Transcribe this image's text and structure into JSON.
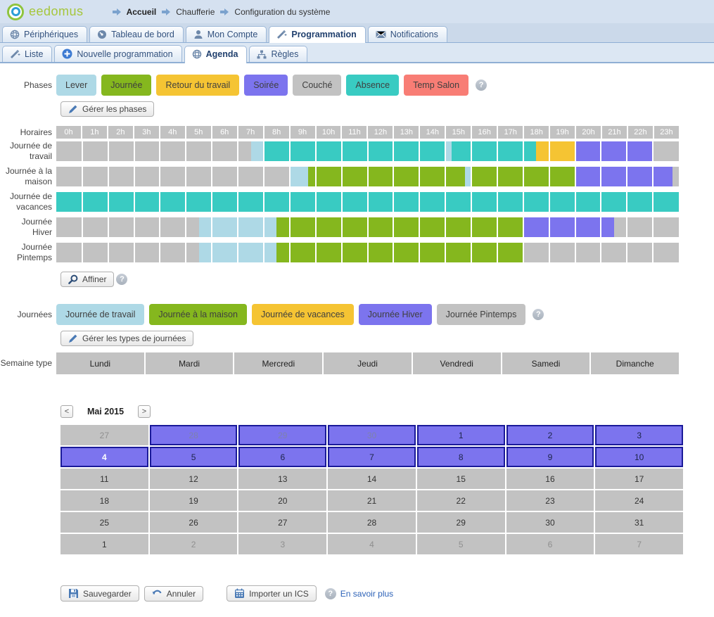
{
  "header": {
    "logo_text": "eedomus",
    "breadcrumb": [
      "Accueil",
      "Chaufferie",
      "Configuration du système"
    ]
  },
  "tabs": {
    "items": [
      {
        "label": "Périphériques",
        "active": false
      },
      {
        "label": "Tableau de bord",
        "active": false
      },
      {
        "label": "Mon Compte",
        "active": false
      },
      {
        "label": "Programmation",
        "active": true
      },
      {
        "label": "Notifications",
        "active": false
      }
    ]
  },
  "subtabs": {
    "items": [
      {
        "label": "Liste",
        "active": false
      },
      {
        "label": "Nouvelle programmation",
        "active": false
      },
      {
        "label": "Agenda",
        "active": true
      },
      {
        "label": "Règles",
        "active": false
      }
    ]
  },
  "phases": {
    "label": "Phases",
    "items": [
      {
        "label": "Lever",
        "color": "#aed9e6"
      },
      {
        "label": "Journée",
        "color": "#85b71e"
      },
      {
        "label": "Retour du travail",
        "color": "#f5c433"
      },
      {
        "label": "Soirée",
        "color": "#7c74ee"
      },
      {
        "label": "Couché",
        "color": "#c2c2c2"
      },
      {
        "label": "Absence",
        "color": "#39cbc2"
      },
      {
        "label": "Temp Salon",
        "color": "#f87d75"
      }
    ],
    "manage_label": "Gérer les phases"
  },
  "timeline": {
    "label": "Horaires",
    "hours": [
      "0h",
      "1h",
      "2h",
      "3h",
      "4h",
      "5h",
      "6h",
      "7h",
      "8h",
      "9h",
      "10h",
      "11h",
      "12h",
      "13h",
      "14h",
      "15h",
      "16h",
      "17h",
      "18h",
      "19h",
      "20h",
      "21h",
      "22h",
      "23h"
    ],
    "colors": {
      "gray": "#c2c2c2",
      "lightblue": "#aed9e6",
      "teal": "#39cbc2",
      "green": "#85b71e",
      "yellow": "#f5c433",
      "purple": "#7c74ee"
    },
    "rows": [
      {
        "label": "Journée de travail",
        "segments": [
          {
            "from": 0,
            "to": 7.5,
            "color": "gray"
          },
          {
            "from": 7.5,
            "to": 8,
            "color": "lightblue"
          },
          {
            "from": 8,
            "to": 15,
            "color": "teal"
          },
          {
            "from": 15,
            "to": 15.25,
            "color": "lightblue"
          },
          {
            "from": 15.25,
            "to": 18.5,
            "color": "teal"
          },
          {
            "from": 18.5,
            "to": 20,
            "color": "yellow"
          },
          {
            "from": 20,
            "to": 23,
            "color": "purple"
          },
          {
            "from": 23,
            "to": 24,
            "color": "gray"
          }
        ]
      },
      {
        "label": "Journée à la maison",
        "segments": [
          {
            "from": 0,
            "to": 9,
            "color": "gray"
          },
          {
            "from": 9,
            "to": 9.7,
            "color": "lightblue"
          },
          {
            "from": 9.7,
            "to": 15.75,
            "color": "green"
          },
          {
            "from": 15.75,
            "to": 16,
            "color": "lightblue"
          },
          {
            "from": 16,
            "to": 20,
            "color": "green"
          },
          {
            "from": 20,
            "to": 23.75,
            "color": "purple"
          },
          {
            "from": 23.75,
            "to": 24,
            "color": "gray"
          }
        ]
      },
      {
        "label": "Journée de vacances",
        "segments": [
          {
            "from": 0,
            "to": 24,
            "color": "teal"
          }
        ]
      },
      {
        "label": "Journée Hiver",
        "segments": [
          {
            "from": 0,
            "to": 5.5,
            "color": "gray"
          },
          {
            "from": 5.5,
            "to": 8.5,
            "color": "lightblue"
          },
          {
            "from": 8.5,
            "to": 18,
            "color": "green"
          },
          {
            "from": 18,
            "to": 21.5,
            "color": "purple"
          },
          {
            "from": 21.5,
            "to": 24,
            "color": "gray"
          }
        ]
      },
      {
        "label": "Journée Pintemps",
        "segments": [
          {
            "from": 0,
            "to": 5.5,
            "color": "gray"
          },
          {
            "from": 5.5,
            "to": 8.5,
            "color": "lightblue"
          },
          {
            "from": 8.5,
            "to": 18,
            "color": "green"
          },
          {
            "from": 18,
            "to": 24,
            "color": "gray"
          }
        ]
      }
    ],
    "refine_label": "Affiner"
  },
  "journees": {
    "label": "Journées",
    "items": [
      {
        "label": "Journée de travail",
        "color": "#aed9e6"
      },
      {
        "label": "Journée à la maison",
        "color": "#85b71e"
      },
      {
        "label": "Journée de vacances",
        "color": "#f5c433"
      },
      {
        "label": "Journée Hiver",
        "color": "#7c74ee"
      },
      {
        "label": "Journée Pintemps",
        "color": "#c2c2c2"
      }
    ],
    "manage_label": "Gérer les types de journées"
  },
  "week": {
    "label": "Semaine type",
    "days": [
      "Lundi",
      "Mardi",
      "Mercredi",
      "Jeudi",
      "Vendredi",
      "Samedi",
      "Dimanche"
    ]
  },
  "calendar": {
    "prev": "<",
    "next": ">",
    "month": "Mai 2015",
    "weeks": [
      [
        {
          "d": "27",
          "t": "gray-muted"
        },
        {
          "d": "28",
          "t": "purple-muted"
        },
        {
          "d": "29",
          "t": "purple-muted"
        },
        {
          "d": "30",
          "t": "purple-muted"
        },
        {
          "d": "1",
          "t": "purple"
        },
        {
          "d": "2",
          "t": "purple"
        },
        {
          "d": "3",
          "t": "purple"
        }
      ],
      [
        {
          "d": "4",
          "t": "purple-selected"
        },
        {
          "d": "5",
          "t": "purple"
        },
        {
          "d": "6",
          "t": "purple"
        },
        {
          "d": "7",
          "t": "purple"
        },
        {
          "d": "8",
          "t": "purple"
        },
        {
          "d": "9",
          "t": "purple"
        },
        {
          "d": "10",
          "t": "purple"
        }
      ],
      [
        {
          "d": "11",
          "t": "gray"
        },
        {
          "d": "12",
          "t": "gray"
        },
        {
          "d": "13",
          "t": "gray"
        },
        {
          "d": "14",
          "t": "gray"
        },
        {
          "d": "15",
          "t": "gray"
        },
        {
          "d": "16",
          "t": "gray"
        },
        {
          "d": "17",
          "t": "gray"
        }
      ],
      [
        {
          "d": "18",
          "t": "gray"
        },
        {
          "d": "19",
          "t": "gray"
        },
        {
          "d": "20",
          "t": "gray"
        },
        {
          "d": "21",
          "t": "gray"
        },
        {
          "d": "22",
          "t": "gray"
        },
        {
          "d": "23",
          "t": "gray"
        },
        {
          "d": "24",
          "t": "gray"
        }
      ],
      [
        {
          "d": "25",
          "t": "gray"
        },
        {
          "d": "26",
          "t": "gray"
        },
        {
          "d": "27",
          "t": "gray"
        },
        {
          "d": "28",
          "t": "gray"
        },
        {
          "d": "29",
          "t": "gray"
        },
        {
          "d": "30",
          "t": "gray"
        },
        {
          "d": "31",
          "t": "gray"
        }
      ],
      [
        {
          "d": "1",
          "t": "gray"
        },
        {
          "d": "2",
          "t": "gray-muted"
        },
        {
          "d": "3",
          "t": "gray-muted"
        },
        {
          "d": "4",
          "t": "gray-muted"
        },
        {
          "d": "5",
          "t": "gray-muted"
        },
        {
          "d": "6",
          "t": "gray-muted"
        },
        {
          "d": "7",
          "t": "gray-muted"
        }
      ]
    ]
  },
  "footer": {
    "save": "Sauvegarder",
    "cancel": "Annuler",
    "import": "Importer un ICS",
    "more": "En savoir plus"
  },
  "misc": {
    "help_glyph": "?"
  }
}
